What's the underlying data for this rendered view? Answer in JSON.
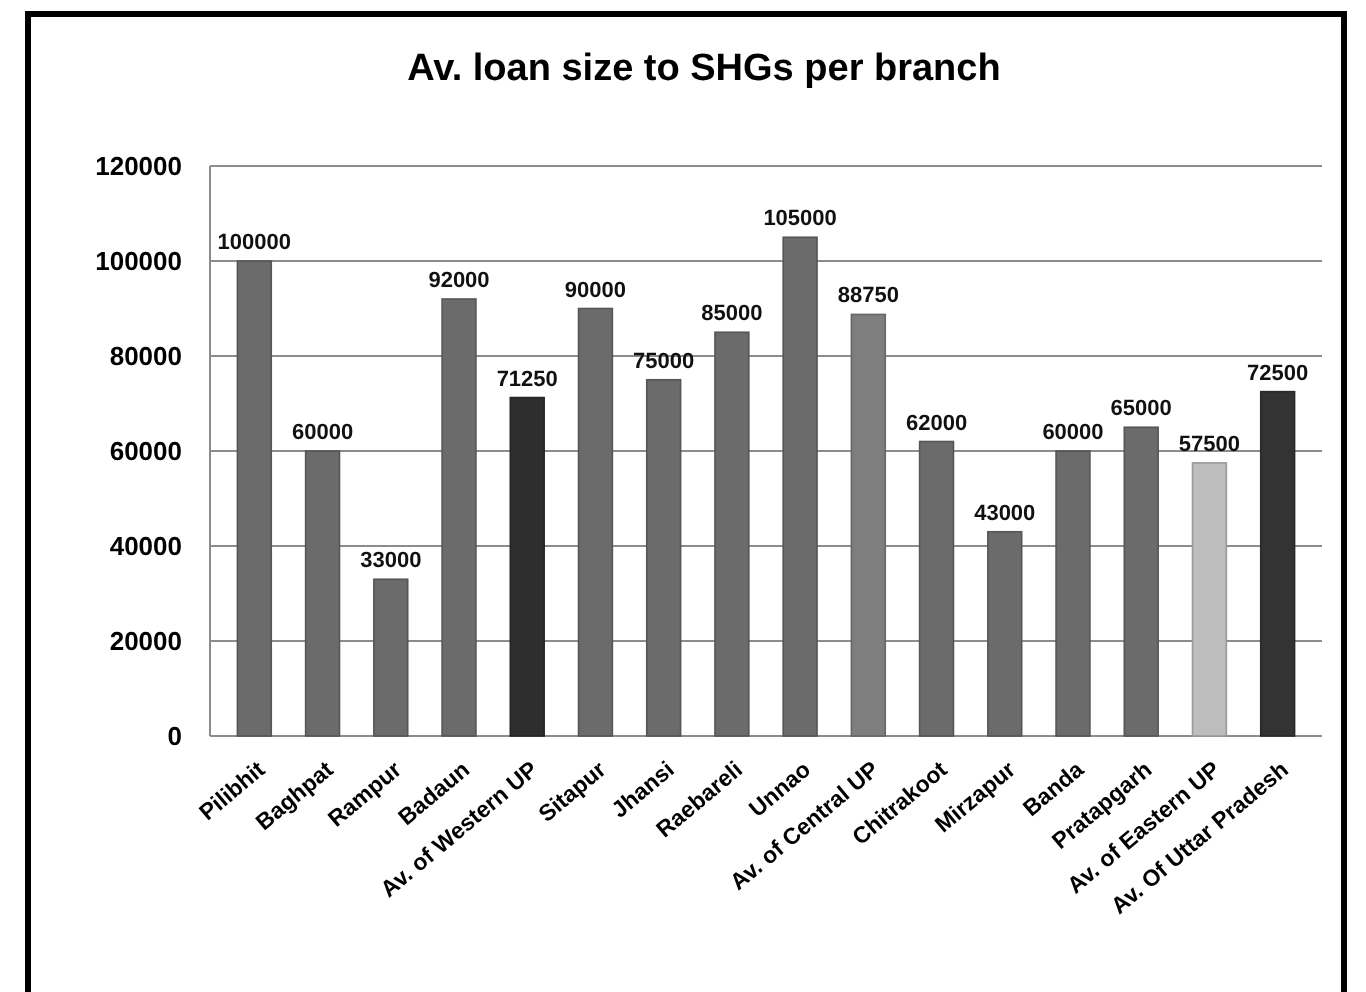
{
  "chart_data": {
    "type": "bar",
    "title": "Av. loan size to SHGs per branch",
    "categories": [
      "Pilibhit",
      "Baghpat",
      "Rampur",
      "Badaun",
      "Av. of Western UP",
      "Sitapur",
      "Jhansi",
      "Raebareli",
      "Unnao",
      "Av. of Central UP",
      "Chitrakoot",
      "Mirzapur",
      "Banda",
      "Pratapgarh",
      "Av. of Eastern UP",
      "Av. Of Uttar Pradesh"
    ],
    "values": [
      100000,
      60000,
      33000,
      92000,
      71250,
      90000,
      75000,
      85000,
      105000,
      88750,
      62000,
      43000,
      60000,
      65000,
      57500,
      72500
    ],
    "colors": [
      "#6b6b6b",
      "#6b6b6b",
      "#6b6b6b",
      "#6b6b6b",
      "#2e2e2e",
      "#6b6b6b",
      "#6b6b6b",
      "#6b6b6b",
      "#6b6b6b",
      "#7e7e7e",
      "#6b6b6b",
      "#6b6b6b",
      "#6b6b6b",
      "#6b6b6b",
      "#bdbdbd",
      "#333333"
    ],
    "ylim": [
      0,
      120000
    ],
    "yticks": [
      0,
      20000,
      40000,
      60000,
      80000,
      100000,
      120000
    ],
    "grid": "y",
    "data_labels": true
  }
}
